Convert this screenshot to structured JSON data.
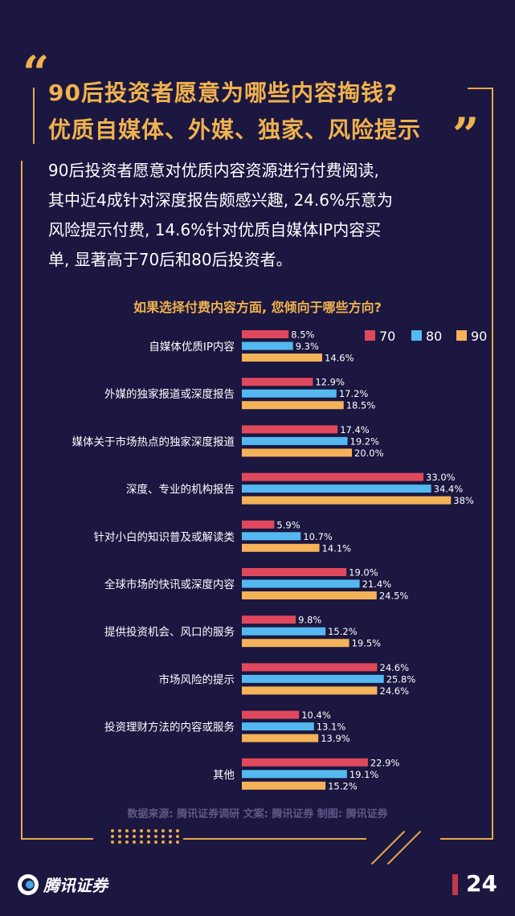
{
  "header": {
    "title_line1": "90后投资者愿意为哪些内容掏钱?",
    "title_line2": "优质自媒体、外媒、独家、风险提示",
    "open_quote": "“",
    "close_quote": "”"
  },
  "intro": {
    "line1": "90后投资者愿意对优质内容资源进行付费阅读,",
    "line2": "其中近4成针对深度报告颇感兴趣, 24.6%乐意为",
    "line3": "风险提示付费, 14.6%针对优质自媒体IP内容买",
    "line4": "单, 显著高于70后和80后投资者。"
  },
  "colors": {
    "s70": "#e0485e",
    "s80": "#55b8f0",
    "s90": "#f4b259",
    "accent": "#f0b24e",
    "background": "#1b1740"
  },
  "chart_data": {
    "type": "bar",
    "orientation": "horizontal",
    "title": "如果选择付费内容方面, 您倾向于哪些方向?",
    "categories": [
      "自媒体优质IP内容",
      "外媒的独家报道或深度报告",
      "媒体关于市场热点的独家深度报道",
      "深度、专业的机构报告",
      "针对小白的知识普及或解读类",
      "全球市场的快讯或深度内容",
      "提供投资机会、风口的服务",
      "市场风险的提示",
      "投资理财方法的内容或服务",
      "其他"
    ],
    "series": [
      {
        "name": "70",
        "values": [
          8.5,
          12.9,
          17.4,
          33.0,
          5.9,
          19.0,
          9.8,
          24.6,
          10.4,
          22.9
        ],
        "labels": [
          "8.5%",
          "12.9%",
          "17.4%",
          "33.0%",
          "5.9%",
          "19.0%",
          "9.8%",
          "24.6%",
          "10.4%",
          "22.9%"
        ]
      },
      {
        "name": "80",
        "values": [
          9.3,
          17.2,
          19.2,
          34.4,
          10.7,
          21.4,
          15.2,
          25.8,
          13.1,
          19.1
        ],
        "labels": [
          "9.3%",
          "17.2%",
          "19.2%",
          "34.4%",
          "10.7%",
          "21.4%",
          "15.2%",
          "25.8%",
          "13.1%",
          "19.1%"
        ]
      },
      {
        "name": "90",
        "values": [
          14.6,
          18.5,
          20.0,
          38,
          14.1,
          24.5,
          19.5,
          24.6,
          13.9,
          15.2
        ],
        "labels": [
          "14.6%",
          "18.5%",
          "20.0%",
          "38%",
          "14.1%",
          "24.5%",
          "19.5%",
          "24.6%",
          "13.9%",
          "15.2%"
        ]
      }
    ],
    "legend_position": "top-right",
    "grid": false
  },
  "footer": {
    "source": "数据来源: 腾讯证券调研   文案: 腾讯证券   制图: 腾讯证券",
    "brand": "腾讯证券",
    "page_number": "24"
  }
}
